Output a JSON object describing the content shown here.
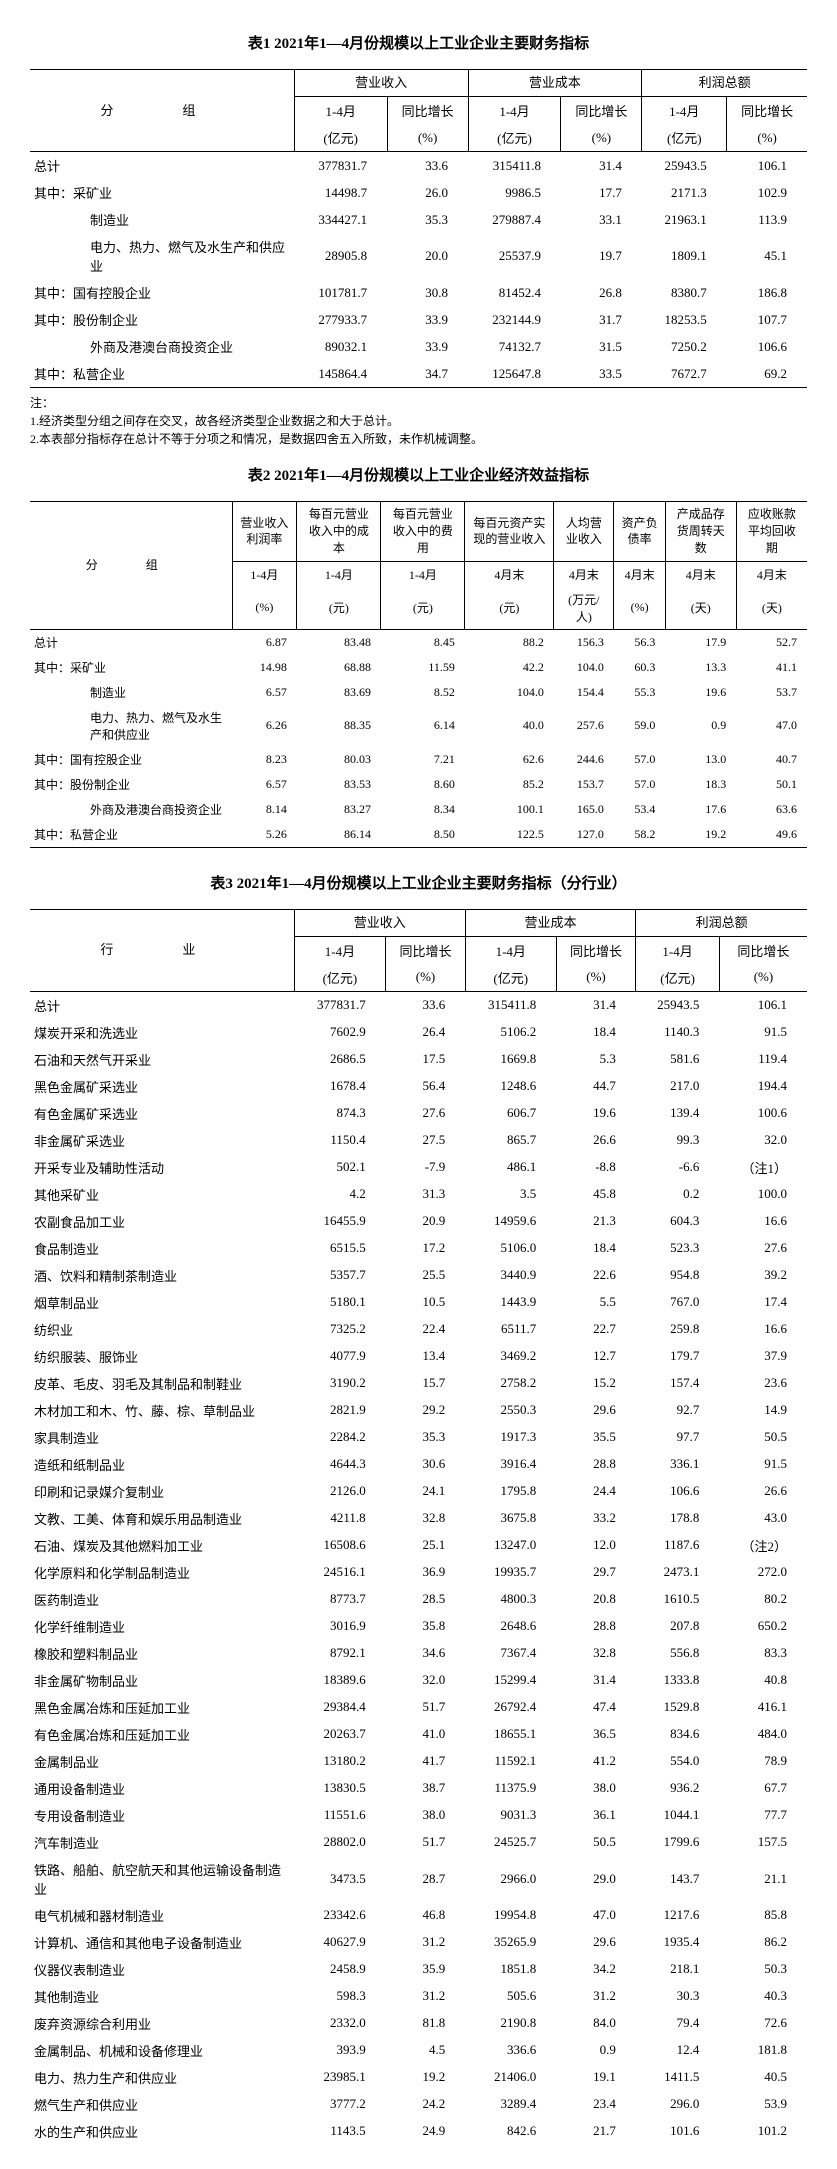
{
  "table1": {
    "title": "表1  2021年1—4月份规模以上工业企业主要财务指标",
    "group_header": "分　组",
    "col_groups": [
      "营业收入",
      "营业成本",
      "利润总额"
    ],
    "sub_headers_line1": [
      "1-4月",
      "同比增长",
      "1-4月",
      "同比增长",
      "1-4月",
      "同比增长"
    ],
    "sub_headers_line2": [
      "(亿元)",
      "(%)",
      "(亿元)",
      "(%)",
      "(亿元)",
      "(%)"
    ],
    "rows": [
      {
        "label": "总计",
        "indent": 0,
        "v": [
          "377831.7",
          "33.6",
          "315411.8",
          "31.4",
          "25943.5",
          "106.1"
        ]
      },
      {
        "label": "其中：采矿业",
        "indent": 0,
        "v": [
          "14498.7",
          "26.0",
          "9986.5",
          "17.7",
          "2171.3",
          "102.9"
        ]
      },
      {
        "label": "制造业",
        "indent": 2,
        "v": [
          "334427.1",
          "35.3",
          "279887.4",
          "33.1",
          "21963.1",
          "113.9"
        ]
      },
      {
        "label": "电力、热力、燃气及水生产和供应业",
        "indent": 2,
        "v": [
          "28905.8",
          "20.0",
          "25537.9",
          "19.7",
          "1809.1",
          "45.1"
        ]
      },
      {
        "label": "其中：国有控股企业",
        "indent": 0,
        "v": [
          "101781.7",
          "30.8",
          "81452.4",
          "26.8",
          "8380.7",
          "186.8"
        ]
      },
      {
        "label": "其中：股份制企业",
        "indent": 0,
        "v": [
          "277933.7",
          "33.9",
          "232144.9",
          "31.7",
          "18253.5",
          "107.7"
        ]
      },
      {
        "label": "外商及港澳台商投资企业",
        "indent": 2,
        "v": [
          "89032.1",
          "33.9",
          "74132.7",
          "31.5",
          "7250.2",
          "106.6"
        ]
      },
      {
        "label": "其中：私营企业",
        "indent": 0,
        "v": [
          "145864.4",
          "34.7",
          "125647.8",
          "33.5",
          "7672.7",
          "69.2"
        ]
      }
    ],
    "notes": [
      "注：",
      "1.经济类型分组之间存在交叉，故各经济类型企业数据之和大于总计。",
      "2.本表部分指标存在总计不等于分项之和情况，是数据四舍五入所致，未作机械调整。"
    ]
  },
  "table2": {
    "title": "表2  2021年1—4月份规模以上工业企业经济效益指标",
    "group_header": "分　组",
    "col_headers": [
      "营业收入利润率",
      "每百元营业收入中的成本",
      "每百元营业收入中的费用",
      "每百元资产实现的营业收入",
      "人均营业收入",
      "资产负债率",
      "产成品存货周转天数",
      "应收账款平均回收期"
    ],
    "sub_line1": [
      "1-4月",
      "1-4月",
      "1-4月",
      "4月末",
      "4月末",
      "4月末",
      "4月末",
      "4月末"
    ],
    "sub_line2": [
      "(%)",
      "(元)",
      "(元)",
      "(元)",
      "(万元/人)",
      "(%)",
      "(天)",
      "(天)"
    ],
    "rows": [
      {
        "label": "总计",
        "indent": 0,
        "v": [
          "6.87",
          "83.48",
          "8.45",
          "88.2",
          "156.3",
          "56.3",
          "17.9",
          "52.7"
        ]
      },
      {
        "label": "其中：采矿业",
        "indent": 0,
        "v": [
          "14.98",
          "68.88",
          "11.59",
          "42.2",
          "104.0",
          "60.3",
          "13.3",
          "41.1"
        ]
      },
      {
        "label": "制造业",
        "indent": 2,
        "v": [
          "6.57",
          "83.69",
          "8.52",
          "104.0",
          "154.4",
          "55.3",
          "19.6",
          "53.7"
        ]
      },
      {
        "label": "电力、热力、燃气及水生产和供应业",
        "indent": 2,
        "v": [
          "6.26",
          "88.35",
          "6.14",
          "40.0",
          "257.6",
          "59.0",
          "0.9",
          "47.0"
        ]
      },
      {
        "label": "其中：国有控股企业",
        "indent": 0,
        "v": [
          "8.23",
          "80.03",
          "7.21",
          "62.6",
          "244.6",
          "57.0",
          "13.0",
          "40.7"
        ]
      },
      {
        "label": "其中：股份制企业",
        "indent": 0,
        "v": [
          "6.57",
          "83.53",
          "8.60",
          "85.2",
          "153.7",
          "57.0",
          "18.3",
          "50.1"
        ]
      },
      {
        "label": "外商及港澳台商投资企业",
        "indent": 2,
        "v": [
          "8.14",
          "83.27",
          "8.34",
          "100.1",
          "165.0",
          "53.4",
          "17.6",
          "63.6"
        ]
      },
      {
        "label": "其中：私营企业",
        "indent": 0,
        "v": [
          "5.26",
          "86.14",
          "8.50",
          "122.5",
          "127.0",
          "58.2",
          "19.2",
          "49.6"
        ]
      }
    ]
  },
  "table3": {
    "title": "表3  2021年1—4月份规模以上工业企业主要财务指标（分行业）",
    "group_header": "行　业",
    "col_groups": [
      "营业收入",
      "营业成本",
      "利润总额"
    ],
    "sub_headers_line1": [
      "1-4月",
      "同比增长",
      "1-4月",
      "同比增长",
      "1-4月",
      "同比增长"
    ],
    "sub_headers_line2": [
      "(亿元)",
      "(%)",
      "(亿元)",
      "(%)",
      "(亿元)",
      "(%)"
    ],
    "rows": [
      {
        "label": "总计",
        "v": [
          "377831.7",
          "33.6",
          "315411.8",
          "31.4",
          "25943.5",
          "106.1"
        ]
      },
      {
        "label": "煤炭开采和洗选业",
        "v": [
          "7602.9",
          "26.4",
          "5106.2",
          "18.4",
          "1140.3",
          "91.5"
        ]
      },
      {
        "label": "石油和天然气开采业",
        "v": [
          "2686.5",
          "17.5",
          "1669.8",
          "5.3",
          "581.6",
          "119.4"
        ]
      },
      {
        "label": "黑色金属矿采选业",
        "v": [
          "1678.4",
          "56.4",
          "1248.6",
          "44.7",
          "217.0",
          "194.4"
        ]
      },
      {
        "label": "有色金属矿采选业",
        "v": [
          "874.3",
          "27.6",
          "606.7",
          "19.6",
          "139.4",
          "100.6"
        ]
      },
      {
        "label": "非金属矿采选业",
        "v": [
          "1150.4",
          "27.5",
          "865.7",
          "26.6",
          "99.3",
          "32.0"
        ]
      },
      {
        "label": "开采专业及辅助性活动",
        "v": [
          "502.1",
          "-7.9",
          "486.1",
          "-8.8",
          "-6.6",
          "（注1）"
        ]
      },
      {
        "label": "其他采矿业",
        "v": [
          "4.2",
          "31.3",
          "3.5",
          "45.8",
          "0.2",
          "100.0"
        ]
      },
      {
        "label": "农副食品加工业",
        "v": [
          "16455.9",
          "20.9",
          "14959.6",
          "21.3",
          "604.3",
          "16.6"
        ]
      },
      {
        "label": "食品制造业",
        "v": [
          "6515.5",
          "17.2",
          "5106.0",
          "18.4",
          "523.3",
          "27.6"
        ]
      },
      {
        "label": "酒、饮料和精制茶制造业",
        "v": [
          "5357.7",
          "25.5",
          "3440.9",
          "22.6",
          "954.8",
          "39.2"
        ]
      },
      {
        "label": "烟草制品业",
        "v": [
          "5180.1",
          "10.5",
          "1443.9",
          "5.5",
          "767.0",
          "17.4"
        ]
      },
      {
        "label": "纺织业",
        "v": [
          "7325.2",
          "22.4",
          "6511.7",
          "22.7",
          "259.8",
          "16.6"
        ]
      },
      {
        "label": "纺织服装、服饰业",
        "v": [
          "4077.9",
          "13.4",
          "3469.2",
          "12.7",
          "179.7",
          "37.9"
        ]
      },
      {
        "label": "皮革、毛皮、羽毛及其制品和制鞋业",
        "v": [
          "3190.2",
          "15.7",
          "2758.2",
          "15.2",
          "157.4",
          "23.6"
        ]
      },
      {
        "label": "木材加工和木、竹、藤、棕、草制品业",
        "v": [
          "2821.9",
          "29.2",
          "2550.3",
          "29.6",
          "92.7",
          "14.9"
        ]
      },
      {
        "label": "家具制造业",
        "v": [
          "2284.2",
          "35.3",
          "1917.3",
          "35.5",
          "97.7",
          "50.5"
        ]
      },
      {
        "label": "造纸和纸制品业",
        "v": [
          "4644.3",
          "30.6",
          "3916.4",
          "28.8",
          "336.1",
          "91.5"
        ]
      },
      {
        "label": "印刷和记录媒介复制业",
        "v": [
          "2126.0",
          "24.1",
          "1795.8",
          "24.4",
          "106.6",
          "26.6"
        ]
      },
      {
        "label": "文教、工美、体育和娱乐用品制造业",
        "v": [
          "4211.8",
          "32.8",
          "3675.8",
          "33.2",
          "178.8",
          "43.0"
        ]
      },
      {
        "label": "石油、煤炭及其他燃料加工业",
        "v": [
          "16508.6",
          "25.1",
          "13247.0",
          "12.0",
          "1187.6",
          "（注2）"
        ]
      },
      {
        "label": "化学原料和化学制品制造业",
        "v": [
          "24516.1",
          "36.9",
          "19935.7",
          "29.7",
          "2473.1",
          "272.0"
        ]
      },
      {
        "label": "医药制造业",
        "v": [
          "8773.7",
          "28.5",
          "4800.3",
          "20.8",
          "1610.5",
          "80.2"
        ]
      },
      {
        "label": "化学纤维制造业",
        "v": [
          "3016.9",
          "35.8",
          "2648.6",
          "28.8",
          "207.8",
          "650.2"
        ]
      },
      {
        "label": "橡胶和塑料制品业",
        "v": [
          "8792.1",
          "34.6",
          "7367.4",
          "32.8",
          "556.8",
          "83.3"
        ]
      },
      {
        "label": "非金属矿物制品业",
        "v": [
          "18389.6",
          "32.0",
          "15299.4",
          "31.4",
          "1333.8",
          "40.8"
        ]
      },
      {
        "label": "黑色金属冶炼和压延加工业",
        "v": [
          "29384.4",
          "51.7",
          "26792.4",
          "47.4",
          "1529.8",
          "416.1"
        ]
      },
      {
        "label": "有色金属冶炼和压延加工业",
        "v": [
          "20263.7",
          "41.0",
          "18655.1",
          "36.5",
          "834.6",
          "484.0"
        ]
      },
      {
        "label": "金属制品业",
        "v": [
          "13180.2",
          "41.7",
          "11592.1",
          "41.2",
          "554.0",
          "78.9"
        ]
      },
      {
        "label": "通用设备制造业",
        "v": [
          "13830.5",
          "38.7",
          "11375.9",
          "38.0",
          "936.2",
          "67.7"
        ]
      },
      {
        "label": "专用设备制造业",
        "v": [
          "11551.6",
          "38.0",
          "9031.3",
          "36.1",
          "1044.1",
          "77.7"
        ]
      },
      {
        "label": "汽车制造业",
        "v": [
          "28802.0",
          "51.7",
          "24525.7",
          "50.5",
          "1799.6",
          "157.5"
        ]
      },
      {
        "label": "铁路、船舶、航空航天和其他运输设备制造业",
        "v": [
          "3473.5",
          "28.7",
          "2966.0",
          "29.0",
          "143.7",
          "21.1"
        ]
      },
      {
        "label": "电气机械和器材制造业",
        "v": [
          "23342.6",
          "46.8",
          "19954.8",
          "47.0",
          "1217.6",
          "85.8"
        ]
      },
      {
        "label": "计算机、通信和其他电子设备制造业",
        "v": [
          "40627.9",
          "31.2",
          "35265.9",
          "29.6",
          "1935.4",
          "86.2"
        ]
      },
      {
        "label": "仪器仪表制造业",
        "v": [
          "2458.9",
          "35.9",
          "1851.8",
          "34.2",
          "218.1",
          "50.3"
        ]
      },
      {
        "label": "其他制造业",
        "v": [
          "598.3",
          "31.2",
          "505.6",
          "31.2",
          "30.3",
          "40.3"
        ]
      },
      {
        "label": "废弃资源综合利用业",
        "v": [
          "2332.0",
          "81.8",
          "2190.8",
          "84.0",
          "79.4",
          "72.6"
        ]
      },
      {
        "label": "金属制品、机械和设备修理业",
        "v": [
          "393.9",
          "4.5",
          "336.6",
          "0.9",
          "12.4",
          "181.8"
        ]
      },
      {
        "label": "电力、热力生产和供应业",
        "v": [
          "23985.1",
          "19.2",
          "21406.0",
          "19.1",
          "1411.5",
          "40.5"
        ]
      },
      {
        "label": "燃气生产和供应业",
        "v": [
          "3777.2",
          "24.2",
          "3289.4",
          "23.4",
          "296.0",
          "53.9"
        ]
      },
      {
        "label": "水的生产和供应业",
        "v": [
          "1143.5",
          "24.9",
          "842.6",
          "21.7",
          "101.6",
          "101.2"
        ]
      }
    ]
  }
}
